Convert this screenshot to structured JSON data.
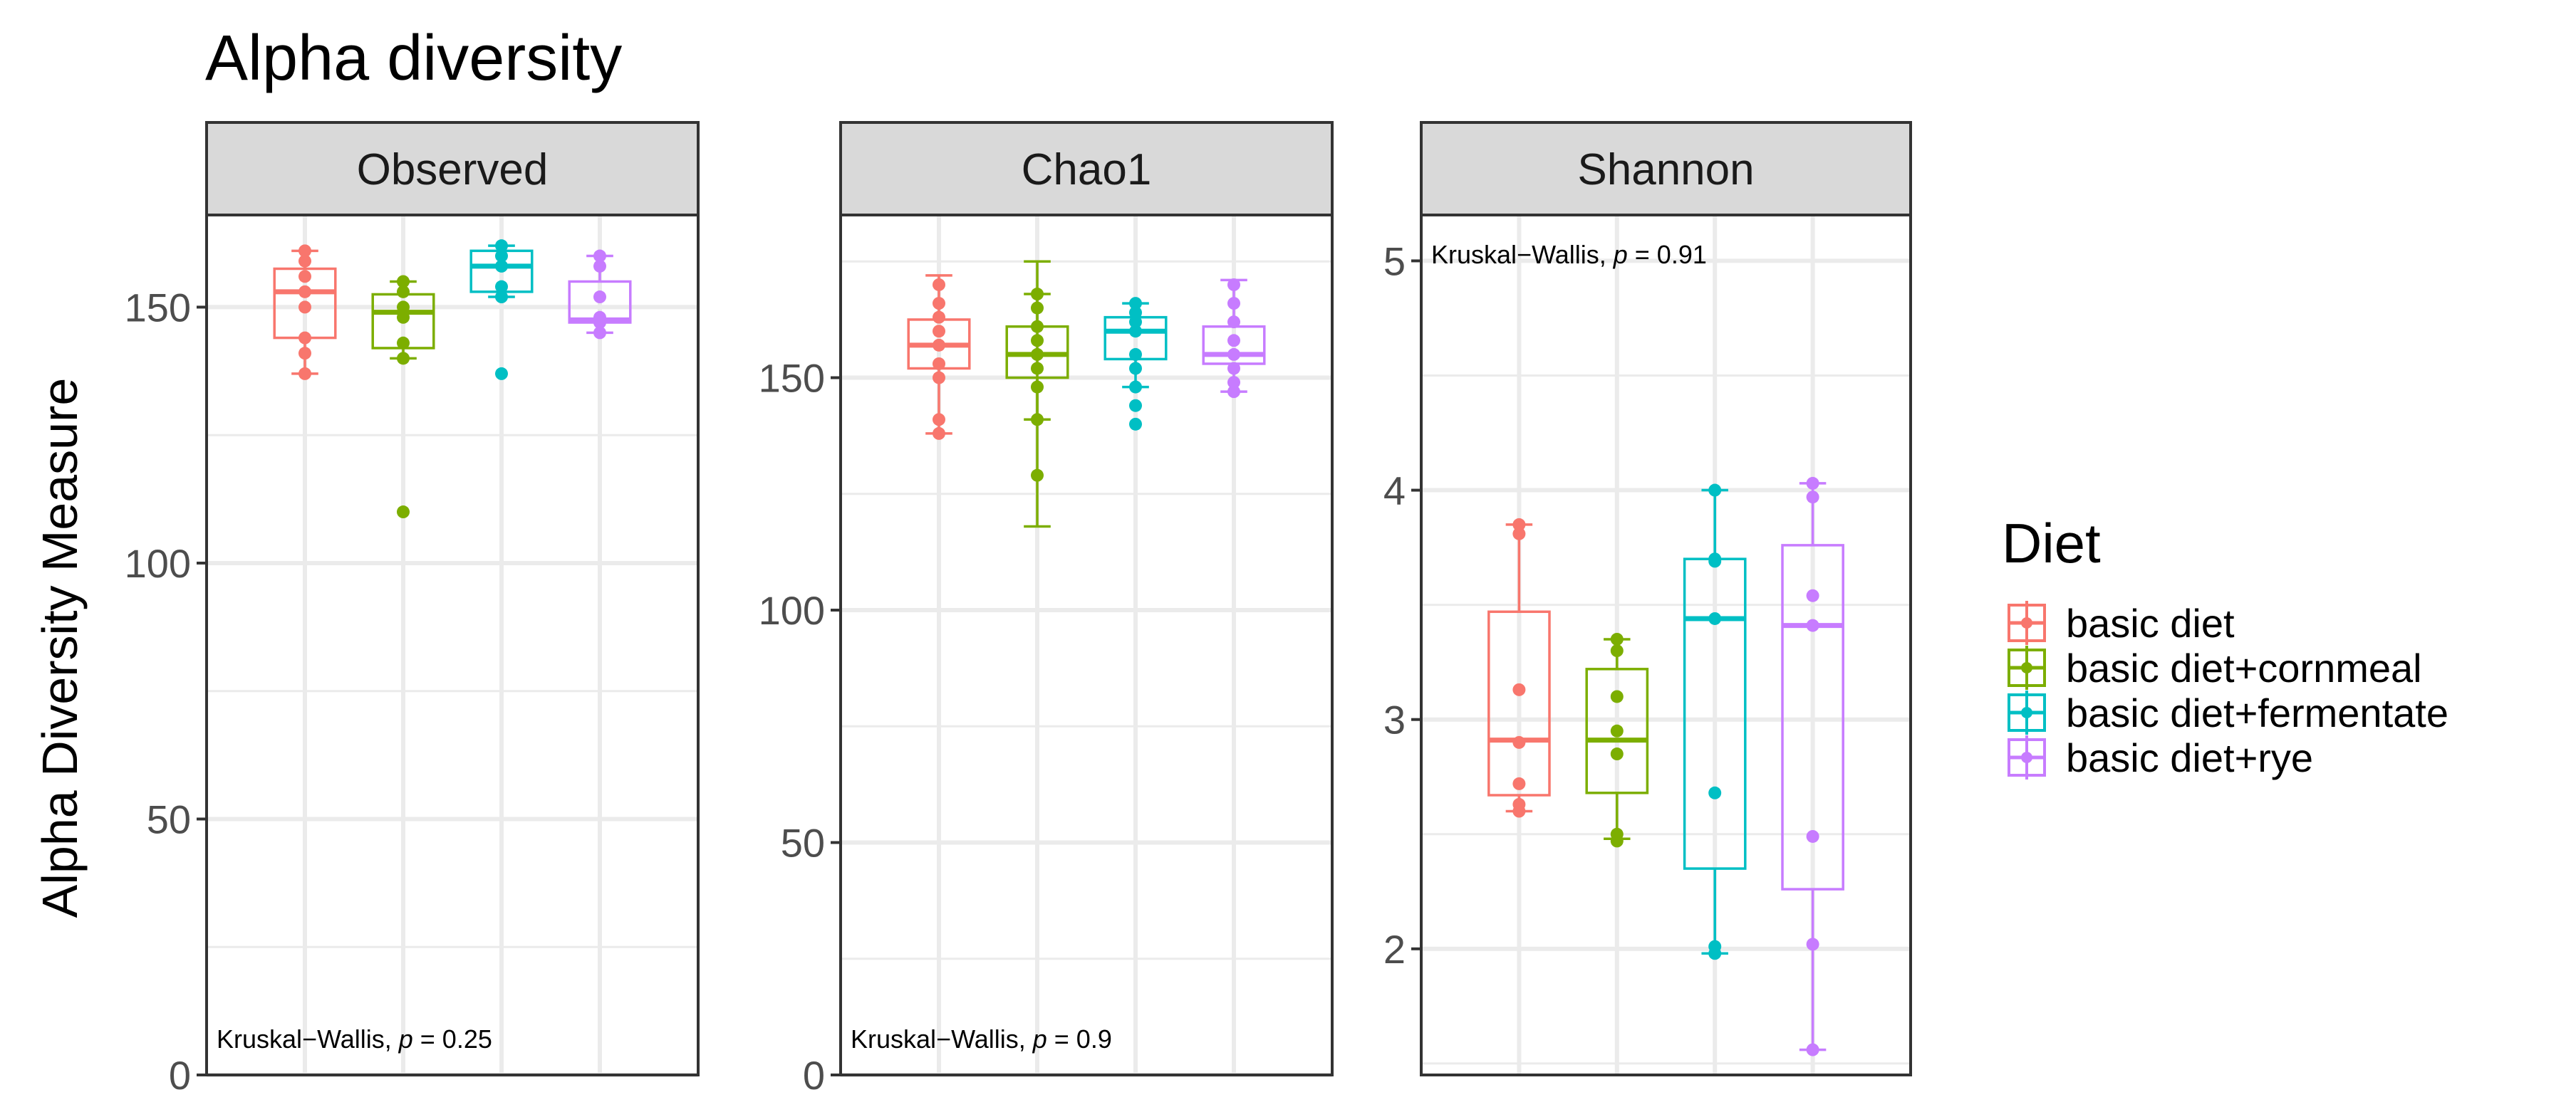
{
  "title": "Alpha diversity",
  "ylabel": "Alpha Diversity Measure",
  "legend": {
    "title": "Diet",
    "position": "right",
    "entries": [
      "basic diet",
      "basic diet+cornmeal",
      "basic diet+fermentate",
      "basic diet+rye"
    ]
  },
  "colors": {
    "basic diet": "#F8766D",
    "basic diet+cornmeal": "#7CAE00",
    "basic diet+fermentate": "#00BFC4",
    "basic diet+rye": "#C77CFF",
    "strip_bg": "#D9D9D9",
    "grid": "#EBEBEB"
  },
  "chart_data": {
    "type": "boxplot",
    "title": "Alpha diversity",
    "ylabel": "Alpha Diversity Measure",
    "xlabel": "",
    "groups": [
      "basic diet",
      "basic diet+cornmeal",
      "basic diet+fermentate",
      "basic diet+rye"
    ],
    "grid": true,
    "panels": [
      {
        "name": "Observed",
        "ylim": [
          0,
          168
        ],
        "yticks": [
          0,
          50,
          100,
          150
        ],
        "annotation": {
          "text": "Kruskal−Wallis, ",
          "p_label": "p",
          "p_value": " = 0.25",
          "position": "bottom-left"
        },
        "boxes": [
          {
            "group": "basic diet",
            "min": 137,
            "q1": 144,
            "median": 153,
            "q3": 157.5,
            "max": 161,
            "points": [
              137,
              141,
              144,
              150,
              153,
              156,
              159,
              161
            ]
          },
          {
            "group": "basic diet+cornmeal",
            "min": 140,
            "q1": 142,
            "median": 149,
            "q3": 152.5,
            "max": 155,
            "points": [
              110,
              140,
              143,
              148,
              150,
              153,
              155
            ]
          },
          {
            "group": "basic diet+fermentate",
            "min": 152,
            "q1": 153,
            "median": 158,
            "q3": 161,
            "max": 162,
            "points": [
              137,
              152,
              154,
              158,
              160,
              162
            ]
          },
          {
            "group": "basic diet+rye",
            "min": 145,
            "q1": 147,
            "median": 147.5,
            "q3": 155,
            "max": 160,
            "points": [
              145,
              147,
              148,
              152,
              158,
              160
            ]
          }
        ]
      },
      {
        "name": "Chao1",
        "ylim": [
          0,
          185
        ],
        "yticks": [
          0,
          50,
          100,
          150
        ],
        "annotation": {
          "text": "Kruskal−Wallis, ",
          "p_label": "p",
          "p_value": " = 0.9",
          "position": "bottom-left"
        },
        "boxes": [
          {
            "group": "basic diet",
            "min": 138,
            "q1": 152,
            "median": 157,
            "q3": 162.5,
            "max": 172,
            "points": [
              138,
              141,
              150,
              153,
              157,
              160,
              163,
              166,
              170
            ]
          },
          {
            "group": "basic diet+cornmeal",
            "min": 141,
            "q1": 150,
            "median": 155,
            "q3": 161,
            "max": 168,
            "points": [
              129,
              141,
              148,
              152,
              155,
              158,
              161,
              165,
              168
            ],
            "outlier_whisker": [
              118,
              175
            ]
          },
          {
            "group": "basic diet+fermentate",
            "min": 148,
            "q1": 154,
            "median": 160,
            "q3": 163,
            "max": 166,
            "points": [
              140,
              144,
              148,
              152,
              155,
              160,
              162,
              164,
              166
            ]
          },
          {
            "group": "basic diet+rye",
            "min": 147,
            "q1": 153,
            "median": 155,
            "q3": 161,
            "max": 171,
            "points": [
              147,
              149,
              152,
              155,
              158,
              162,
              166,
              170
            ]
          }
        ]
      },
      {
        "name": "Shannon",
        "ylim": [
          1.45,
          5.2
        ],
        "yticks": [
          2,
          3,
          4,
          5
        ],
        "annotation": {
          "text": "Kruskal−Wallis, ",
          "p_label": "p",
          "p_value": " = 0.91",
          "position": "top-left"
        },
        "boxes": [
          {
            "group": "basic diet",
            "min": 2.6,
            "q1": 2.67,
            "median": 2.91,
            "q3": 3.47,
            "max": 3.85,
            "points": [
              2.6,
              2.63,
              2.72,
              2.9,
              3.13,
              3.81,
              3.85
            ]
          },
          {
            "group": "basic diet+cornmeal",
            "min": 2.48,
            "q1": 2.68,
            "median": 2.91,
            "q3": 3.22,
            "max": 3.35,
            "points": [
              2.47,
              2.5,
              2.85,
              2.95,
              3.1,
              3.3,
              3.35
            ]
          },
          {
            "group": "basic diet+fermentate",
            "min": 1.98,
            "q1": 2.35,
            "median": 3.44,
            "q3": 3.7,
            "max": 4.0,
            "points": [
              1.98,
              2.01,
              2.68,
              3.44,
              3.69,
              3.7,
              4.0
            ]
          },
          {
            "group": "basic diet+rye",
            "min": 1.56,
            "q1": 2.26,
            "median": 3.41,
            "q3": 3.76,
            "max": 4.03,
            "points": [
              1.56,
              2.02,
              2.49,
              3.41,
              3.54,
              3.97,
              4.03
            ]
          }
        ]
      }
    ]
  }
}
